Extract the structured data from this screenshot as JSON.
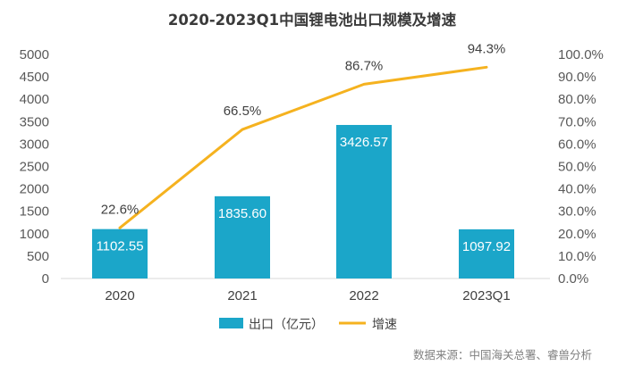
{
  "colors": {
    "bar": "#1ba6c9",
    "line": "#f5b21f",
    "axis": "#d9d9d9"
  },
  "source_note": "数据来源：中国海关总署、睿兽分析",
  "chart_data": {
    "type": "bar",
    "title": "2020-2023Q1中国锂电池出口规模及增速",
    "categories": [
      "2020",
      "2021",
      "2022",
      "2023Q1"
    ],
    "series": [
      {
        "name": "出口（亿元）",
        "type": "bar",
        "axis": "left",
        "values": [
          1102.55,
          1835.6,
          3426.57,
          1097.92
        ],
        "labels": [
          "1102.55",
          "1835.60",
          "3426.57",
          "1097.92"
        ]
      },
      {
        "name": "增速",
        "type": "line",
        "axis": "right",
        "values": [
          22.6,
          66.5,
          86.7,
          94.3
        ],
        "labels": [
          "22.6%",
          "66.5%",
          "86.7%",
          "94.3%"
        ]
      }
    ],
    "y_left": {
      "min": 0,
      "max": 5000,
      "step": 500,
      "ticks": [
        "0",
        "500",
        "1000",
        "1500",
        "2000",
        "2500",
        "3000",
        "3500",
        "4000",
        "4500",
        "5000"
      ]
    },
    "y_right": {
      "min": 0,
      "max": 100,
      "step": 10,
      "ticks": [
        "0.0%",
        "10.0%",
        "20.0%",
        "30.0%",
        "40.0%",
        "50.0%",
        "60.0%",
        "70.0%",
        "80.0%",
        "90.0%",
        "100.0%"
      ]
    },
    "grid": false,
    "legend": "bottom"
  }
}
